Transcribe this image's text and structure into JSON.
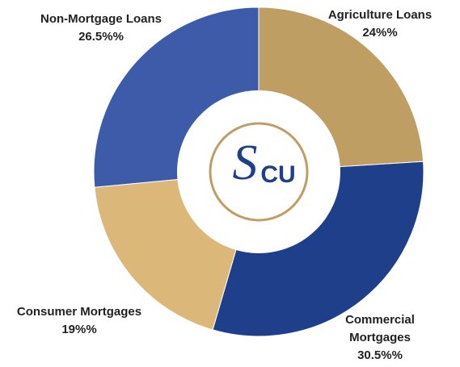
{
  "chart_data": {
    "type": "donut",
    "categories": [
      "Agriculture Loans",
      "Commercial Mortgages",
      "Consumer Mortgages",
      "Non-Mortgage Loans"
    ],
    "values": [
      24,
      30.5,
      19,
      26.5
    ],
    "value_labels": [
      "24%%",
      "30.5%%",
      "19%%",
      "26.5%%"
    ],
    "colors": [
      "#bf9e63",
      "#1f3f8a",
      "#dbb87a",
      "#3d5ba8"
    ],
    "center_logo": {
      "script": "S",
      "text": "CU"
    }
  }
}
